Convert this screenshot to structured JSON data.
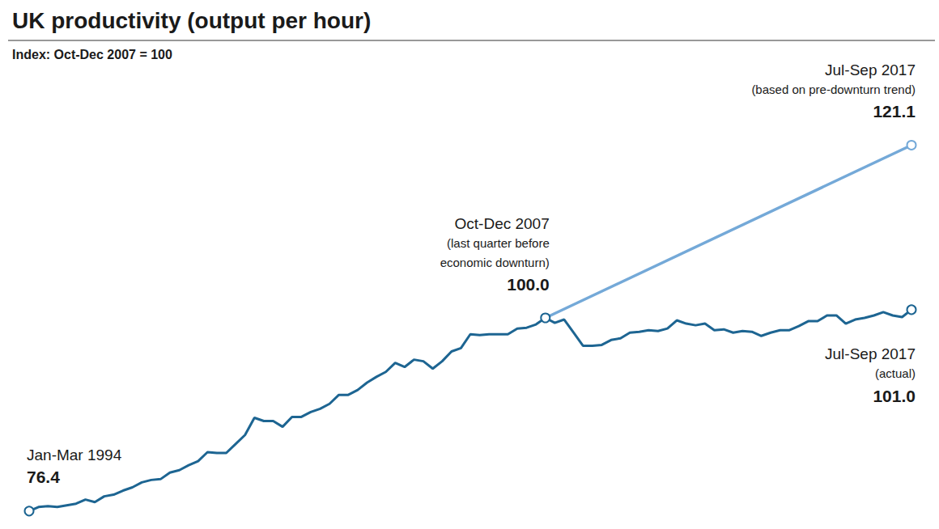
{
  "chart_data": {
    "type": "line",
    "title": "UK productivity (output per hour)",
    "subtitle": "Index: Oct-Dec 2007 = 100",
    "categories": [
      "Jan-Mar 1994",
      null,
      null,
      null,
      null,
      null,
      null,
      null,
      null,
      null,
      null,
      null,
      null,
      null,
      null,
      null,
      null,
      null,
      null,
      null,
      null,
      null,
      null,
      null,
      null,
      null,
      null,
      null,
      null,
      null,
      null,
      null,
      null,
      null,
      null,
      null,
      null,
      null,
      null,
      null,
      null,
      null,
      null,
      null,
      null,
      null,
      null,
      null,
      null,
      null,
      null,
      null,
      null,
      null,
      null,
      "Oct-Dec 2007",
      null,
      null,
      null,
      null,
      null,
      null,
      null,
      null,
      null,
      null,
      null,
      null,
      null,
      null,
      null,
      null,
      null,
      null,
      null,
      null,
      null,
      null,
      null,
      null,
      null,
      null,
      null,
      null,
      null,
      null,
      null,
      null,
      null,
      null,
      null,
      null,
      null,
      null,
      "Jul-Sep 2017"
    ],
    "series": [
      {
        "color": "#1d6592",
        "marker": "circle",
        "values": [
          76.4,
          76.9,
          77.0,
          76.9,
          77.1,
          77.3,
          77.8,
          77.5,
          78.2,
          78.4,
          78.9,
          79.3,
          79.9,
          80.2,
          80.3,
          81.1,
          81.4,
          82.0,
          82.5,
          83.6,
          83.5,
          83.5,
          84.6,
          85.7,
          87.8,
          87.4,
          87.4,
          86.7,
          87.9,
          87.9,
          88.5,
          88.9,
          89.5,
          90.6,
          90.6,
          91.2,
          92.1,
          92.8,
          93.4,
          94.5,
          94.0,
          94.9,
          94.7,
          93.8,
          94.7,
          95.9,
          96.3,
          98.0,
          97.9,
          98.0,
          98.0,
          98.0,
          98.7,
          98.8,
          99.2,
          100.0,
          99.4,
          99.8,
          98.2,
          96.6,
          96.6,
          96.7,
          97.3,
          97.5,
          98.2,
          98.3,
          98.5,
          98.4,
          98.7,
          99.7,
          99.3,
          99.1,
          99.3,
          98.5,
          98.6,
          98.2,
          98.4,
          98.3,
          97.8,
          98.2,
          98.5,
          98.5,
          99.0,
          99.6,
          99.6,
          100.3,
          100.3,
          99.3,
          99.8,
          100.0,
          100.3,
          100.7,
          100.3,
          100.1,
          101.0
        ],
        "annotations": [
          {
            "label": "Jan-Mar 1994",
            "value": 76.4,
            "value_label": "76.4"
          },
          {
            "label": "Oct-Dec 2007",
            "note": [
              "(last quarter before",
              "economic downturn)"
            ],
            "value": 100,
            "value_label": "100.0"
          },
          {
            "label": "Jul-Sep 2017",
            "note": [
              "(actual)"
            ],
            "value": 101,
            "value_label": "101.0"
          }
        ]
      },
      {
        "color": "#74a9d8",
        "marker": "circle",
        "values": [
          null,
          null,
          null,
          null,
          null,
          null,
          null,
          null,
          null,
          null,
          null,
          null,
          null,
          null,
          null,
          null,
          null,
          null,
          null,
          null,
          null,
          null,
          null,
          null,
          null,
          null,
          null,
          null,
          null,
          null,
          null,
          null,
          null,
          null,
          null,
          null,
          null,
          null,
          null,
          null,
          null,
          null,
          null,
          null,
          null,
          null,
          null,
          null,
          null,
          null,
          null,
          null,
          null,
          null,
          null,
          100.0,
          null,
          null,
          null,
          null,
          null,
          null,
          null,
          null,
          null,
          null,
          null,
          null,
          null,
          null,
          null,
          null,
          null,
          null,
          null,
          null,
          null,
          null,
          null,
          null,
          null,
          null,
          null,
          null,
          null,
          null,
          null,
          null,
          null,
          null,
          null,
          null,
          null,
          null,
          121.1
        ],
        "annotations": [
          {
            "label": "Jul-Sep 2017",
            "note": [
              "(based on pre-downturn trend)"
            ],
            "value": 121.1,
            "value_label": "121.1"
          }
        ]
      }
    ],
    "ylim": [
      75,
      125
    ],
    "grid": false,
    "tick_labels": false
  }
}
